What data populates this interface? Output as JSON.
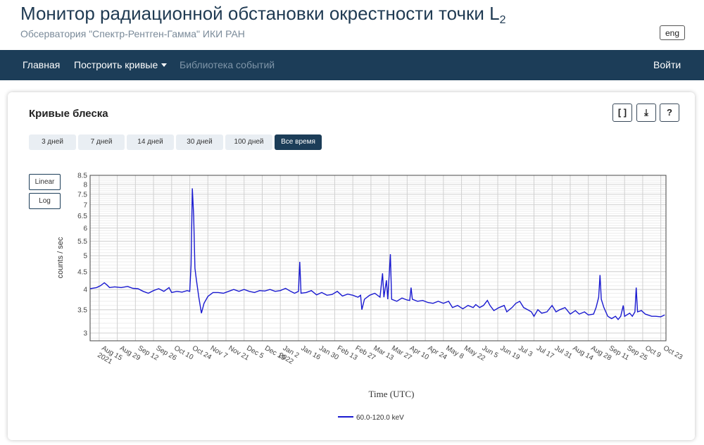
{
  "header": {
    "title": "Монитор радиационной обстановки окрестности точки L",
    "title_subscript": "2",
    "subtitle": "Обсерватория \"Спектр-Рентген-Гамма\" ИКИ РАН",
    "lang_button": "eng"
  },
  "nav": {
    "home": "Главная",
    "build_curves": "Построить кривые",
    "event_library": "Библиотека событий",
    "login": "Войти"
  },
  "card": {
    "title": "Кривые блеска",
    "buttons": {
      "fit": "[ ]",
      "download": "⤓",
      "help": "?"
    },
    "ranges": [
      "3 дней",
      "7 дней",
      "14 дней",
      "30 дней",
      "100 дней",
      "Все время"
    ],
    "active_range": "Все время",
    "scales": {
      "linear": "Linear",
      "log": "Log"
    }
  },
  "colors": {
    "accent": "#1c3d58",
    "series": "#1a1ad0"
  },
  "chart_data": {
    "type": "line",
    "y_scale": "log",
    "ylabel": "counts / sec",
    "xlabel": "Time (UTC)",
    "ylim": [
      2.85,
      8.5
    ],
    "y_ticks": [
      3,
      3.5,
      4,
      4.5,
      5,
      5.5,
      6,
      6.5,
      7,
      7.5,
      8,
      8.5
    ],
    "x_range": [
      "2021-08-08",
      "2022-10-27"
    ],
    "x_ticks": [
      {
        "date": "2021-08-15",
        "label": "Aug 15",
        "sub": "2021"
      },
      {
        "date": "2021-08-29",
        "label": "Aug 29"
      },
      {
        "date": "2021-09-12",
        "label": "Sep 12"
      },
      {
        "date": "2021-09-26",
        "label": "Sep 26"
      },
      {
        "date": "2021-10-10",
        "label": "Oct 10"
      },
      {
        "date": "2021-10-24",
        "label": "Oct 24"
      },
      {
        "date": "2021-11-07",
        "label": "Nov 7"
      },
      {
        "date": "2021-11-21",
        "label": "Nov 21"
      },
      {
        "date": "2021-12-05",
        "label": "Dec 5"
      },
      {
        "date": "2021-12-19",
        "label": "Dec 19"
      },
      {
        "date": "2022-01-02",
        "label": "Jan 2",
        "sub": "2022"
      },
      {
        "date": "2022-01-16",
        "label": "Jan 16"
      },
      {
        "date": "2022-01-30",
        "label": "Jan 30"
      },
      {
        "date": "2022-02-13",
        "label": "Feb 13"
      },
      {
        "date": "2022-02-27",
        "label": "Feb 27"
      },
      {
        "date": "2022-03-13",
        "label": "Mar 13"
      },
      {
        "date": "2022-03-27",
        "label": "Mar 27"
      },
      {
        "date": "2022-04-10",
        "label": "Apr 10"
      },
      {
        "date": "2022-04-24",
        "label": "Apr 24"
      },
      {
        "date": "2022-05-08",
        "label": "May 8"
      },
      {
        "date": "2022-05-22",
        "label": "May 22"
      },
      {
        "date": "2022-06-05",
        "label": "Jun 5"
      },
      {
        "date": "2022-06-19",
        "label": "Jun 19"
      },
      {
        "date": "2022-07-03",
        "label": "Jul 3"
      },
      {
        "date": "2022-07-17",
        "label": "Jul 17"
      },
      {
        "date": "2022-07-31",
        "label": "Jul 31"
      },
      {
        "date": "2022-08-14",
        "label": "Aug 14"
      },
      {
        "date": "2022-08-28",
        "label": "Aug 28"
      },
      {
        "date": "2022-09-11",
        "label": "Sep 11"
      },
      {
        "date": "2022-09-25",
        "label": "Sep 25"
      },
      {
        "date": "2022-10-09",
        "label": "Oct 9"
      },
      {
        "date": "2022-10-23",
        "label": "Oct 23"
      }
    ],
    "grid": true,
    "legend_position": "bottom-center",
    "series": [
      {
        "name": "60.0-120.0 keV",
        "color": "#1a1ad0",
        "points": [
          [
            "2021-08-08",
            4.02
          ],
          [
            "2021-08-13",
            4.05
          ],
          [
            "2021-08-16",
            4.1
          ],
          [
            "2021-08-19",
            4.18
          ],
          [
            "2021-08-21",
            4.12
          ],
          [
            "2021-08-23",
            4.05
          ],
          [
            "2021-08-27",
            4.07
          ],
          [
            "2021-09-01",
            4.05
          ],
          [
            "2021-09-06",
            4.08
          ],
          [
            "2021-09-10",
            4.03
          ],
          [
            "2021-09-14",
            4.02
          ],
          [
            "2021-09-18",
            3.95
          ],
          [
            "2021-09-22",
            3.9
          ],
          [
            "2021-09-26",
            3.97
          ],
          [
            "2021-09-30",
            4.02
          ],
          [
            "2021-10-04",
            3.95
          ],
          [
            "2021-10-08",
            4.05
          ],
          [
            "2021-10-10",
            3.92
          ],
          [
            "2021-10-14",
            3.95
          ],
          [
            "2021-10-18",
            3.93
          ],
          [
            "2021-10-22",
            3.97
          ],
          [
            "2021-10-24",
            3.95
          ],
          [
            "2021-10-25",
            4.7
          ],
          [
            "2021-10-26",
            7.8
          ],
          [
            "2021-10-27",
            6.5
          ],
          [
            "2021-10-28",
            4.6
          ],
          [
            "2021-10-29",
            4.3
          ],
          [
            "2021-10-31",
            3.8
          ],
          [
            "2021-11-02",
            3.42
          ],
          [
            "2021-11-04",
            3.65
          ],
          [
            "2021-11-07",
            3.82
          ],
          [
            "2021-11-11",
            3.92
          ],
          [
            "2021-11-15",
            3.92
          ],
          [
            "2021-11-19",
            3.9
          ],
          [
            "2021-11-23",
            3.95
          ],
          [
            "2021-11-27",
            4.0
          ],
          [
            "2021-12-01",
            3.95
          ],
          [
            "2021-12-05",
            4.0
          ],
          [
            "2021-12-09",
            3.95
          ],
          [
            "2021-12-13",
            3.92
          ],
          [
            "2021-12-17",
            3.97
          ],
          [
            "2021-12-21",
            3.96
          ],
          [
            "2021-12-25",
            4.0
          ],
          [
            "2021-12-29",
            3.95
          ],
          [
            "2022-01-02",
            3.97
          ],
          [
            "2022-01-06",
            4.03
          ],
          [
            "2022-01-10",
            3.95
          ],
          [
            "2022-01-13",
            3.9
          ],
          [
            "2022-01-16",
            3.95
          ],
          [
            "2022-01-17",
            4.8
          ],
          [
            "2022-01-18",
            3.9
          ],
          [
            "2022-01-22",
            3.92
          ],
          [
            "2022-01-26",
            3.97
          ],
          [
            "2022-01-30",
            3.86
          ],
          [
            "2022-02-03",
            3.92
          ],
          [
            "2022-02-07",
            3.85
          ],
          [
            "2022-02-11",
            3.87
          ],
          [
            "2022-02-15",
            3.95
          ],
          [
            "2022-02-19",
            3.83
          ],
          [
            "2022-02-23",
            3.88
          ],
          [
            "2022-02-27",
            3.85
          ],
          [
            "2022-03-03",
            3.8
          ],
          [
            "2022-03-05",
            3.85
          ],
          [
            "2022-03-06",
            3.5
          ],
          [
            "2022-03-08",
            3.75
          ],
          [
            "2022-03-12",
            3.85
          ],
          [
            "2022-03-16",
            3.9
          ],
          [
            "2022-03-20",
            3.8
          ],
          [
            "2022-03-22",
            4.45
          ],
          [
            "2022-03-23",
            3.8
          ],
          [
            "2022-03-25",
            4.25
          ],
          [
            "2022-03-26",
            3.75
          ],
          [
            "2022-03-28",
            5.05
          ],
          [
            "2022-03-29",
            3.75
          ],
          [
            "2022-04-02",
            3.7
          ],
          [
            "2022-04-06",
            3.78
          ],
          [
            "2022-04-10",
            3.73
          ],
          [
            "2022-04-12",
            3.72
          ],
          [
            "2022-04-13",
            4.05
          ],
          [
            "2022-04-14",
            3.75
          ],
          [
            "2022-04-18",
            3.7
          ],
          [
            "2022-04-22",
            3.72
          ],
          [
            "2022-04-26",
            3.67
          ],
          [
            "2022-04-30",
            3.65
          ],
          [
            "2022-05-04",
            3.7
          ],
          [
            "2022-05-08",
            3.65
          ],
          [
            "2022-05-12",
            3.7
          ],
          [
            "2022-05-15",
            3.55
          ],
          [
            "2022-05-19",
            3.6
          ],
          [
            "2022-05-23",
            3.52
          ],
          [
            "2022-05-27",
            3.6
          ],
          [
            "2022-05-31",
            3.55
          ],
          [
            "2022-06-02",
            3.62
          ],
          [
            "2022-06-05",
            3.55
          ],
          [
            "2022-06-08",
            3.6
          ],
          [
            "2022-06-11",
            3.72
          ],
          [
            "2022-06-13",
            3.6
          ],
          [
            "2022-06-16",
            3.48
          ],
          [
            "2022-06-20",
            3.55
          ],
          [
            "2022-06-24",
            3.6
          ],
          [
            "2022-06-26",
            3.45
          ],
          [
            "2022-06-30",
            3.55
          ],
          [
            "2022-07-03",
            3.65
          ],
          [
            "2022-07-06",
            3.7
          ],
          [
            "2022-07-09",
            3.55
          ],
          [
            "2022-07-12",
            3.5
          ],
          [
            "2022-07-15",
            3.45
          ],
          [
            "2022-07-17",
            3.35
          ],
          [
            "2022-07-20",
            3.5
          ],
          [
            "2022-07-23",
            3.42
          ],
          [
            "2022-07-27",
            3.45
          ],
          [
            "2022-07-31",
            3.6
          ],
          [
            "2022-08-03",
            3.45
          ],
          [
            "2022-08-06",
            3.5
          ],
          [
            "2022-08-10",
            3.55
          ],
          [
            "2022-08-14",
            3.4
          ],
          [
            "2022-08-18",
            3.48
          ],
          [
            "2022-08-21",
            3.4
          ],
          [
            "2022-08-25",
            3.45
          ],
          [
            "2022-08-28",
            3.38
          ],
          [
            "2022-09-01",
            3.4
          ],
          [
            "2022-09-03",
            3.55
          ],
          [
            "2022-09-05",
            3.8
          ],
          [
            "2022-09-06",
            4.4
          ],
          [
            "2022-09-07",
            3.75
          ],
          [
            "2022-09-09",
            3.55
          ],
          [
            "2022-09-12",
            3.35
          ],
          [
            "2022-09-15",
            3.3
          ],
          [
            "2022-09-18",
            3.35
          ],
          [
            "2022-09-20",
            3.28
          ],
          [
            "2022-09-22",
            3.35
          ],
          [
            "2022-09-24",
            3.6
          ],
          [
            "2022-09-25",
            3.35
          ],
          [
            "2022-09-29",
            3.42
          ],
          [
            "2022-10-01",
            3.35
          ],
          [
            "2022-10-03",
            3.45
          ],
          [
            "2022-10-04",
            4.05
          ],
          [
            "2022-10-05",
            3.45
          ],
          [
            "2022-10-08",
            3.48
          ],
          [
            "2022-10-11",
            3.4
          ],
          [
            "2022-10-13",
            3.38
          ],
          [
            "2022-10-16",
            3.35
          ],
          [
            "2022-10-19",
            3.35
          ],
          [
            "2022-10-23",
            3.34
          ],
          [
            "2022-10-26",
            3.38
          ]
        ]
      }
    ]
  }
}
